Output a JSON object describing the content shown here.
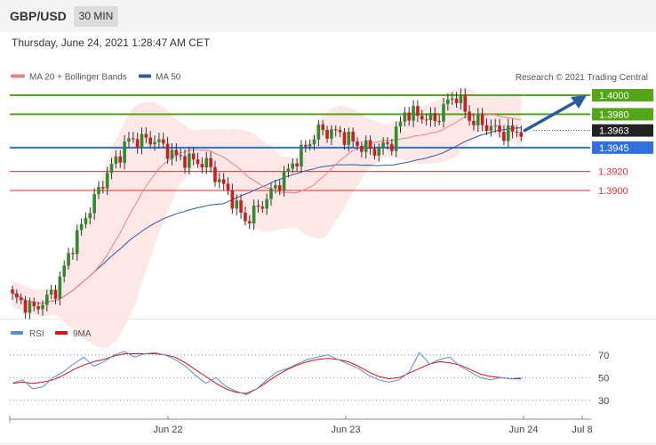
{
  "header": {
    "pair": "GBP/USD",
    "timeframe": "30 MIN"
  },
  "datetime": "Thursday, June 24, 2021 1:28:47 AM CET",
  "copyright": "Research © 2021 Trading Central",
  "colors": {
    "resistance": "#52a617",
    "support": "#e62e2e",
    "pivot": "#2f6fe0",
    "current": "#222222",
    "bull": "#2e8b2e",
    "bear": "#cc1e1e",
    "ma20": "#f08080",
    "ma50": "#2c5aa0",
    "band_fill": "#fde3e3",
    "arrow": "#2c5aa0",
    "rsi": "#5b8dd6",
    "rsi_ma": "#dd1111"
  },
  "chart_data": [
    {
      "type": "candlestick",
      "legend": [
        {
          "name": "MA 20 + Bollinger Bands",
          "color": "#f08080"
        },
        {
          "name": "MA 50",
          "color": "#2c5aa0"
        }
      ],
      "levels": [
        {
          "label": "1.4000",
          "value": 1.4,
          "kind": "resistance"
        },
        {
          "label": "1.3980",
          "value": 1.398,
          "kind": "resistance"
        },
        {
          "label": "1.3963",
          "value": 1.3963,
          "kind": "current"
        },
        {
          "label": "1.3945",
          "value": 1.3945,
          "kind": "pivot"
        },
        {
          "label": "1.3920",
          "value": 1.392,
          "kind": "support"
        },
        {
          "label": "1.3900",
          "value": 1.39,
          "kind": "support"
        }
      ],
      "projection": {
        "from": 1.3963,
        "to": 1.4,
        "direction": "up"
      },
      "anchors": [
        [
          0,
          1.3788
        ],
        [
          5,
          1.3775
        ],
        [
          10,
          1.3795
        ],
        [
          14,
          1.3843
        ],
        [
          18,
          1.3882
        ],
        [
          22,
          1.3918
        ],
        [
          27,
          1.3953
        ],
        [
          33,
          1.3953
        ],
        [
          38,
          1.3935
        ],
        [
          45,
          1.3928
        ],
        [
          50,
          1.3898
        ],
        [
          54,
          1.3868
        ],
        [
          58,
          1.3886
        ],
        [
          63,
          1.3915
        ],
        [
          67,
          1.394
        ],
        [
          71,
          1.3963
        ],
        [
          76,
          1.396
        ],
        [
          80,
          1.3948
        ],
        [
          84,
          1.3942
        ],
        [
          88,
          1.395
        ],
        [
          91,
          1.3982
        ],
        [
          95,
          1.3978
        ],
        [
          98,
          1.3973
        ],
        [
          101,
          1.3993
        ],
        [
          103,
          1.4
        ],
        [
          106,
          1.3975
        ],
        [
          110,
          1.3968
        ],
        [
          114,
          1.396
        ],
        [
          118,
          1.3963
        ]
      ],
      "x_ticks": [
        "Jun 22",
        "Jun 23",
        "Jun 24",
        "Jul 8"
      ]
    },
    {
      "type": "line",
      "legend": [
        {
          "name": "RSI",
          "color": "#5b8dd6"
        },
        {
          "name": "9MA",
          "color": "#dd1111"
        }
      ],
      "y_ticks": [
        "70",
        "50",
        "30"
      ],
      "ylim": [
        22,
        80
      ],
      "series": [
        {
          "name": "RSI",
          "values": [
            45,
            48,
            40,
            42,
            50,
            55,
            62,
            68,
            60,
            64,
            70,
            73,
            68,
            71,
            72,
            70,
            66,
            60,
            52,
            45,
            50,
            42,
            38,
            35,
            40,
            48,
            55,
            58,
            62,
            66,
            68,
            70,
            66,
            62,
            58,
            52,
            48,
            46,
            48,
            55,
            72,
            62,
            66,
            68,
            60,
            55,
            50,
            48,
            50,
            49,
            50
          ]
        },
        {
          "name": "9MA",
          "values": [
            45,
            46,
            45,
            46,
            48,
            52,
            57,
            61,
            64,
            66,
            69,
            71,
            71,
            71,
            71,
            70,
            68,
            63,
            57,
            51,
            45,
            40,
            37,
            36,
            40,
            46,
            52,
            57,
            61,
            64,
            66,
            67,
            66,
            64,
            60,
            55,
            51,
            49,
            50,
            54,
            58,
            62,
            64,
            63,
            61,
            57,
            53,
            51,
            50,
            49,
            49
          ]
        }
      ]
    }
  ]
}
